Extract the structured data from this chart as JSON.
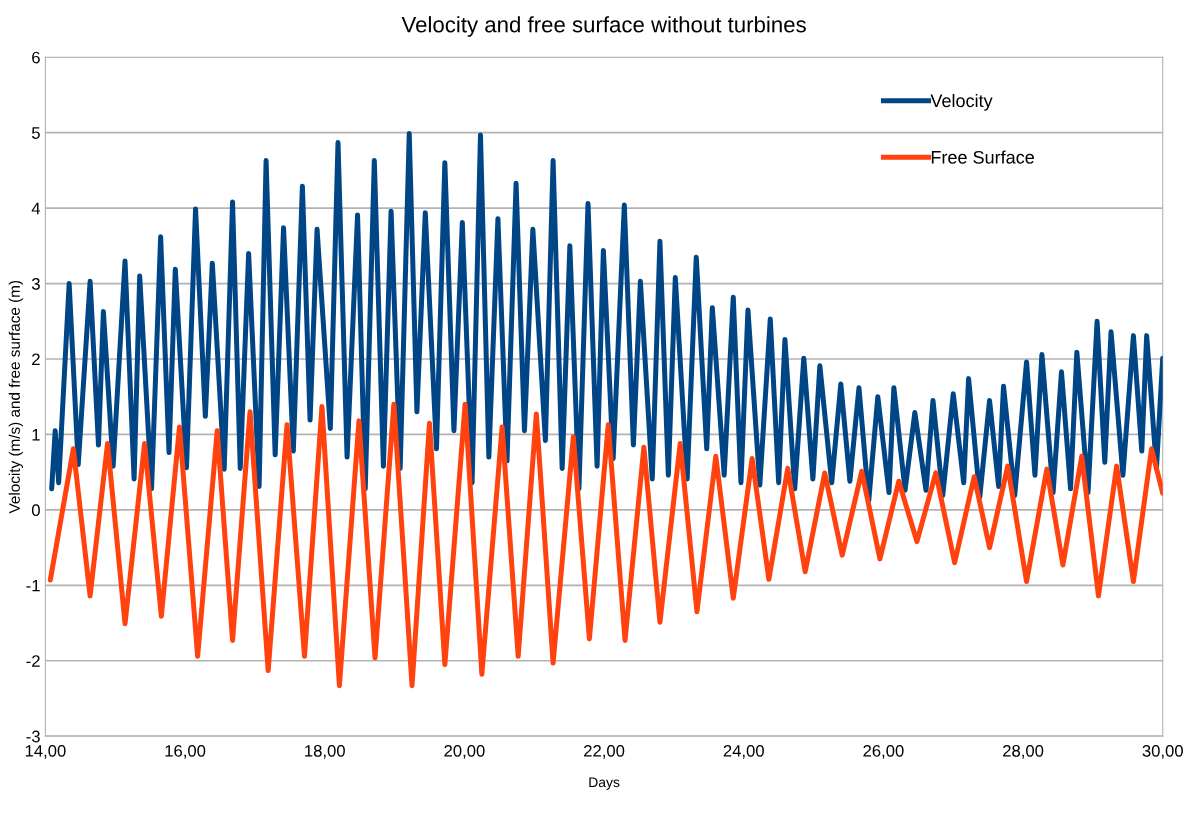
{
  "chart_data": {
    "type": "line",
    "title": "Velocity and free surface without turbines",
    "xlabel": "Days",
    "ylabel": "Velocity (m/s) and free surface (m)",
    "xlim": [
      14,
      30
    ],
    "xticks": [
      {
        "value": 14,
        "label": "14,00"
      },
      {
        "value": 16,
        "label": "16,00"
      },
      {
        "value": 18,
        "label": "18,00"
      },
      {
        "value": 20,
        "label": "20,00"
      },
      {
        "value": 22,
        "label": "22,00"
      },
      {
        "value": 24,
        "label": "24,00"
      },
      {
        "value": 26,
        "label": "26,00"
      },
      {
        "value": 28,
        "label": "28,00"
      },
      {
        "value": 30,
        "label": "30,00"
      }
    ],
    "ylim": [
      -3,
      6
    ],
    "yticks": [
      -3,
      -2,
      -1,
      0,
      1,
      2,
      3,
      4,
      5,
      6
    ],
    "grid": "y",
    "legend": "top right",
    "marker": "none",
    "line_style": "solid",
    "series": [
      {
        "name": "Velocity",
        "color": "#004586",
        "x": [
          14.09,
          14.14,
          14.19,
          14.34,
          14.47,
          14.64,
          14.76,
          14.83,
          14.97,
          15.14,
          15.27,
          15.35,
          15.52,
          15.65,
          15.77,
          15.86,
          16.02,
          16.15,
          16.29,
          16.39,
          16.56,
          16.68,
          16.79,
          16.91,
          17.06,
          17.16,
          17.29,
          17.41,
          17.55,
          17.68,
          17.79,
          17.89,
          18.08,
          18.19,
          18.32,
          18.47,
          18.58,
          18.71,
          18.84,
          18.95,
          19.08,
          19.21,
          19.32,
          19.44,
          19.6,
          19.72,
          19.85,
          19.97,
          20.11,
          20.23,
          20.35,
          20.48,
          20.61,
          20.74,
          20.86,
          20.98,
          21.16,
          21.27,
          21.4,
          21.51,
          21.64,
          21.77,
          21.9,
          21.99,
          22.13,
          22.29,
          22.42,
          22.52,
          22.69,
          22.8,
          22.92,
          23.02,
          23.19,
          23.32,
          23.47,
          23.55,
          23.72,
          23.85,
          23.96,
          24.06,
          24.23,
          24.38,
          24.5,
          24.59,
          24.73,
          24.86,
          24.99,
          25.09,
          25.26,
          25.39,
          25.52,
          25.65,
          25.79,
          25.92,
          26.08,
          26.15,
          26.31,
          26.45,
          26.61,
          26.71,
          26.85,
          27.0,
          27.15,
          27.22,
          27.38,
          27.52,
          27.65,
          27.72,
          27.88,
          28.05,
          28.17,
          28.27,
          28.43,
          28.55,
          28.68,
          28.77,
          28.93,
          29.06,
          29.17,
          29.26,
          29.43,
          29.58,
          29.7,
          29.77,
          29.91,
          30
        ],
        "values": [
          0.28,
          1.05,
          0.36,
          3.0,
          0.6,
          3.03,
          0.86,
          2.63,
          0.58,
          3.3,
          0.41,
          3.1,
          0.28,
          3.62,
          0.76,
          3.19,
          0.56,
          3.99,
          1.24,
          3.27,
          0.54,
          4.08,
          0.55,
          3.4,
          0.31,
          4.63,
          0.73,
          3.74,
          0.78,
          4.29,
          1.19,
          3.72,
          1.08,
          4.87,
          0.7,
          3.91,
          0.28,
          4.63,
          0.58,
          3.96,
          0.55,
          4.99,
          1.3,
          3.94,
          0.81,
          4.6,
          1.05,
          3.81,
          0.36,
          4.97,
          0.7,
          3.86,
          0.65,
          4.33,
          1.05,
          3.72,
          0.92,
          4.63,
          0.55,
          3.5,
          0.28,
          4.06,
          0.58,
          3.44,
          0.68,
          4.04,
          0.86,
          3.03,
          0.41,
          3.56,
          0.46,
          3.08,
          0.41,
          3.35,
          0.81,
          2.68,
          0.46,
          2.82,
          0.36,
          2.65,
          0.33,
          2.53,
          0.36,
          2.26,
          0.28,
          2.01,
          0.41,
          1.91,
          0.36,
          1.67,
          0.38,
          1.62,
          0.12,
          1.5,
          0.23,
          1.62,
          0.26,
          1.29,
          0.26,
          1.45,
          0.19,
          1.54,
          0.36,
          1.74,
          0.17,
          1.45,
          0.31,
          1.64,
          0.19,
          1.96,
          0.46,
          2.06,
          0.23,
          1.83,
          0.28,
          2.09,
          0.23,
          2.5,
          0.63,
          2.36,
          0.46,
          2.31,
          0.78,
          2.31,
          0.55,
          2.01
        ]
      },
      {
        "name": "Free Surface",
        "color": "#ff420e",
        "x": [
          14.07,
          14.4,
          14.64,
          14.89,
          15.14,
          15.42,
          15.66,
          15.92,
          16.18,
          16.46,
          16.68,
          16.93,
          17.19,
          17.46,
          17.71,
          17.96,
          18.21,
          18.49,
          18.72,
          18.99,
          19.25,
          19.5,
          19.72,
          20.01,
          20.25,
          20.54,
          20.77,
          21.03,
          21.27,
          21.56,
          21.79,
          22.06,
          22.3,
          22.57,
          22.8,
          23.09,
          23.33,
          23.6,
          23.85,
          24.12,
          24.36,
          24.63,
          24.88,
          25.16,
          25.41,
          25.69,
          25.95,
          26.22,
          26.48,
          26.75,
          27.02,
          27.3,
          27.52,
          27.78,
          28.05,
          28.34,
          28.57,
          28.84,
          29.08,
          29.34,
          29.58,
          29.84,
          30.0
        ],
        "values": [
          -0.93,
          0.81,
          -1.14,
          0.88,
          -1.51,
          0.88,
          -1.41,
          1.1,
          -1.94,
          1.05,
          -1.73,
          1.3,
          -2.13,
          1.13,
          -1.94,
          1.37,
          -2.33,
          1.18,
          -1.96,
          1.4,
          -2.33,
          1.15,
          -2.05,
          1.4,
          -2.18,
          1.1,
          -1.94,
          1.27,
          -2.03,
          0.97,
          -1.71,
          1.13,
          -1.73,
          0.83,
          -1.49,
          0.88,
          -1.35,
          0.71,
          -1.17,
          0.68,
          -0.92,
          0.55,
          -0.82,
          0.49,
          -0.6,
          0.51,
          -0.65,
          0.38,
          -0.42,
          0.49,
          -0.7,
          0.44,
          -0.5,
          0.58,
          -0.95,
          0.54,
          -0.73,
          0.71,
          -1.14,
          0.58,
          -0.95,
          0.81,
          0.22
        ]
      }
    ]
  }
}
